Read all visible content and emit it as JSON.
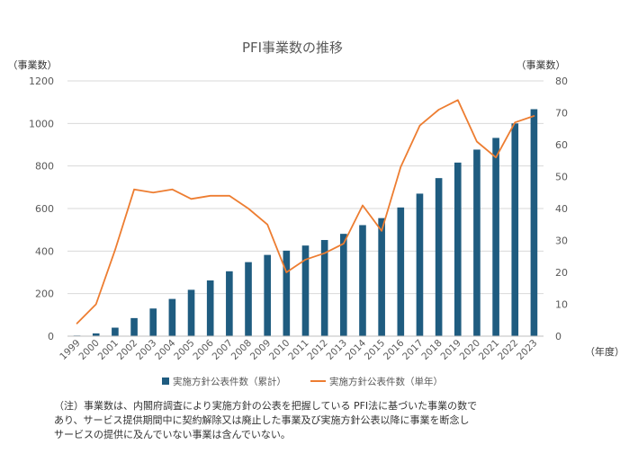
{
  "chart_data": {
    "type": "bar+line",
    "title": "PFI事業数の推移",
    "y_left_label": "（事業数）",
    "y_right_label": "（事業数）",
    "x_unit_label": "（年度）",
    "categories": [
      "1999",
      "2000",
      "2001",
      "2002",
      "2003",
      "2004",
      "2005",
      "2006",
      "2007",
      "2008",
      "2009",
      "2010",
      "2011",
      "2012",
      "2013",
      "2014",
      "2015",
      "2016",
      "2017",
      "2018",
      "2019",
      "2020",
      "2021",
      "2022",
      "2023"
    ],
    "y_left_ticks": [
      "0",
      "200",
      "400",
      "600",
      "800",
      "1000",
      "1200"
    ],
    "y_right_ticks": [
      "0",
      "10",
      "20",
      "30",
      "40",
      "50",
      "60",
      "70",
      "80"
    ],
    "ylim_left": [
      0,
      1200
    ],
    "ylim_right": [
      0,
      80
    ],
    "grid": true,
    "legend_position": "bottom",
    "series": [
      {
        "name": "実施方針公表件数（累計）",
        "kind": "bar",
        "axis": "left",
        "color": "#1f5c80",
        "values": [
          3,
          13,
          40,
          85,
          130,
          175,
          218,
          262,
          305,
          348,
          382,
          402,
          426,
          452,
          481,
          522,
          555,
          605,
          670,
          743,
          816,
          877,
          932,
          1000,
          1067
        ]
      },
      {
        "name": "実施方針公表件数（単年）",
        "kind": "line",
        "axis": "right",
        "color": "#ed7d31",
        "values": [
          4,
          10,
          27,
          46,
          45,
          46,
          43,
          44,
          44,
          40,
          35,
          20,
          24,
          26,
          29,
          41,
          33,
          53,
          66,
          71,
          74,
          61,
          56,
          67,
          69
        ]
      }
    ]
  },
  "note": {
    "lines": [
      "（注）事業数は、内閣府調査により実施方針の公表を把握している PFI法に基づいた事業の数で",
      "あり、サービス提供期間中に契約解除又は廃止した事業及び実施方針公表以降に事業を断念し",
      "サービスの提供に及んでいない事業は含んでいない。"
    ]
  }
}
